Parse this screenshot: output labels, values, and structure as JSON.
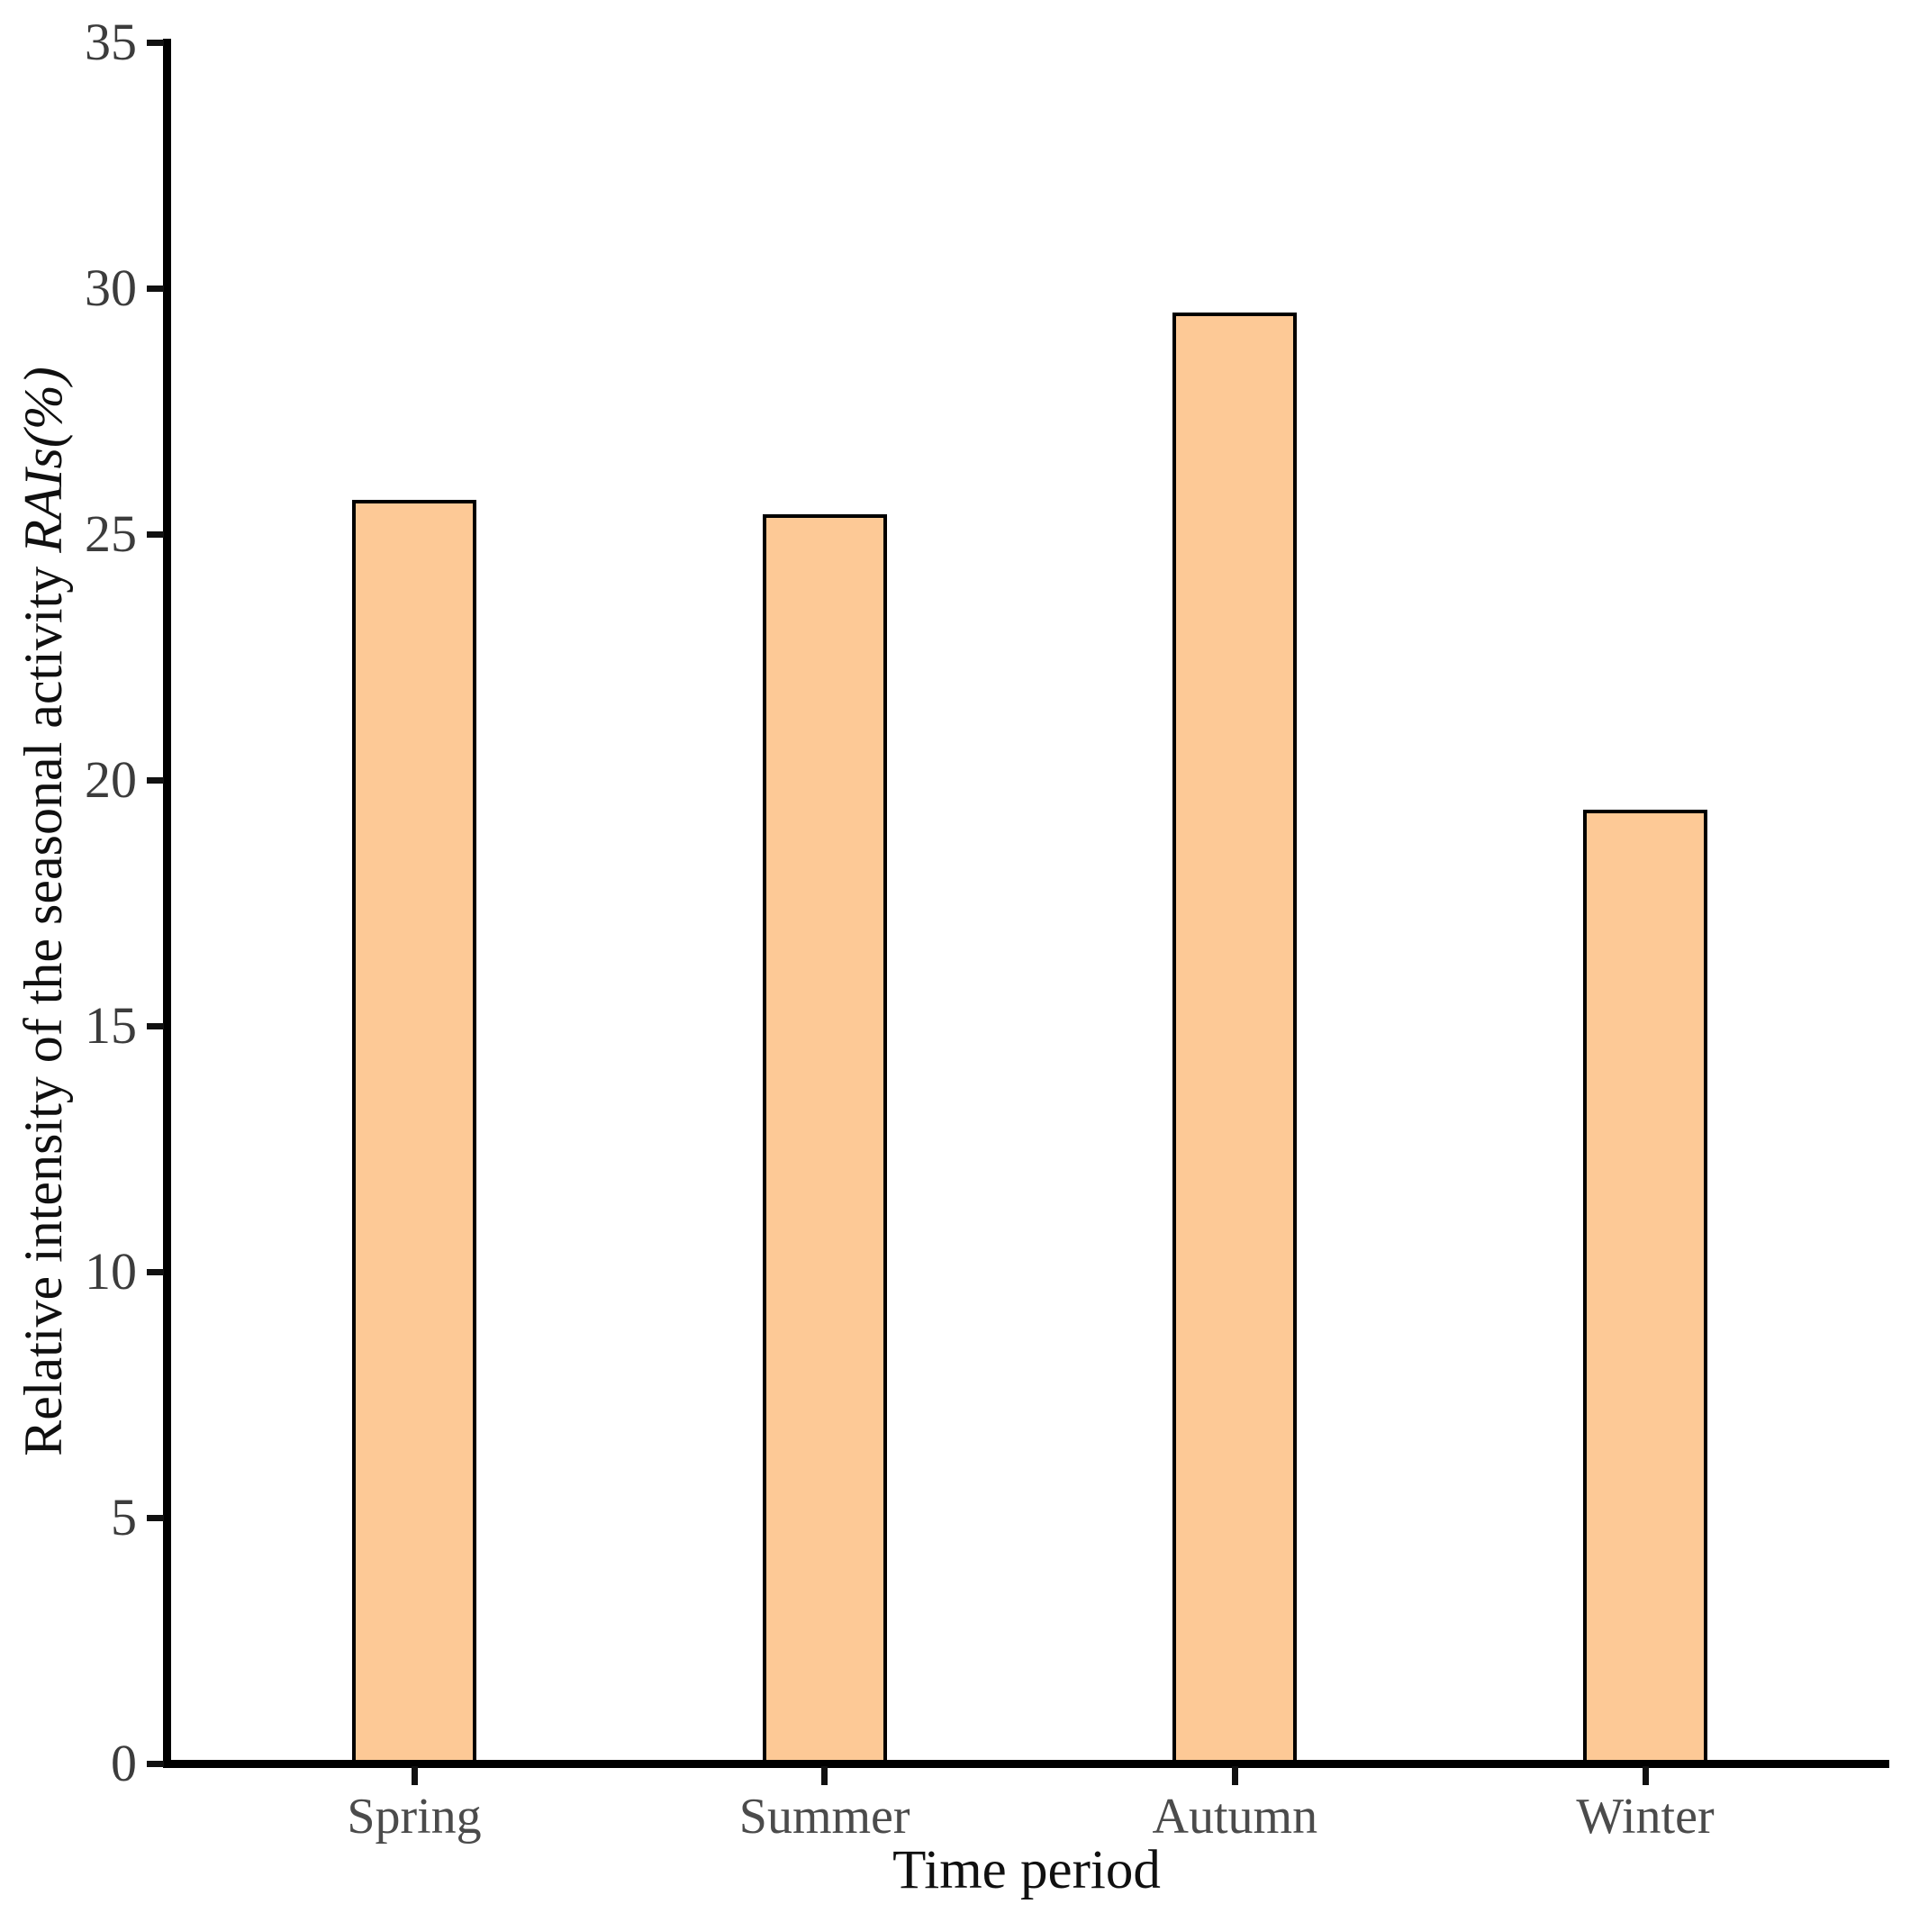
{
  "chart_data": {
    "type": "bar",
    "categories": [
      "Spring",
      "Summer",
      "Autumn",
      "Winter"
    ],
    "values": [
      25.7,
      25.4,
      29.5,
      19.4
    ],
    "title": "",
    "xlabel": "Time period",
    "ylabel": "Relative intensity of the seasonal activity RAIs(%)",
    "ylabel_parts": {
      "plain": "Relative intensity of the seasonal activity ",
      "italic": "RAIs(%)"
    },
    "yticks": [
      0,
      5,
      10,
      15,
      20,
      25,
      30,
      35
    ],
    "ylim": [
      0,
      35
    ],
    "grid": false,
    "legend": null,
    "bar_color": "#FDC996",
    "bar_border_color": "#000000",
    "axis_color": "#000000",
    "tick_label_color": "#3c3c3c",
    "category_label_color": "#4b4b4b"
  }
}
